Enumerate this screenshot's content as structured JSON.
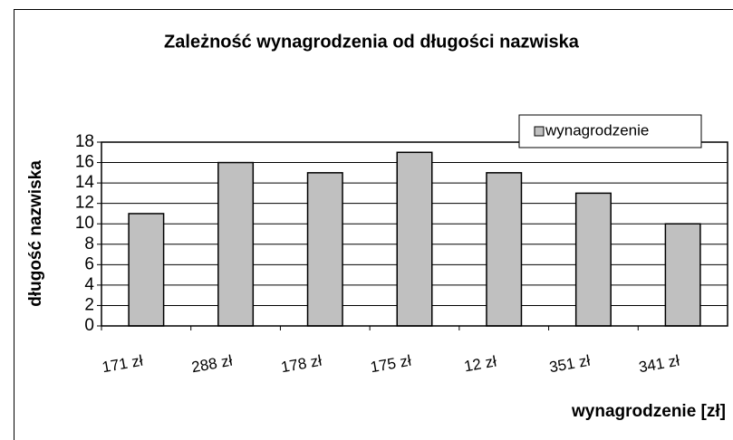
{
  "chart_data": {
    "type": "bar",
    "title": "Zależność wynagrodzenia od długości nazwiska",
    "x_label": "wynagrodzenie [zł]",
    "y_label": "długość nazwiska",
    "categories": [
      "171 zł",
      "288 zł",
      "178 zł",
      "175 zł",
      "12 zł",
      "351 zł",
      "341 zł"
    ],
    "series": [
      {
        "name": "wynagrodzenie",
        "color": "#c0c0c0",
        "values": [
          11,
          16,
          15,
          17,
          15,
          13,
          10
        ]
      }
    ],
    "ylim": [
      0,
      18
    ],
    "yticks": [
      0,
      2,
      4,
      6,
      8,
      10,
      12,
      14,
      16,
      18
    ],
    "grid": true,
    "legend": "top-right"
  }
}
